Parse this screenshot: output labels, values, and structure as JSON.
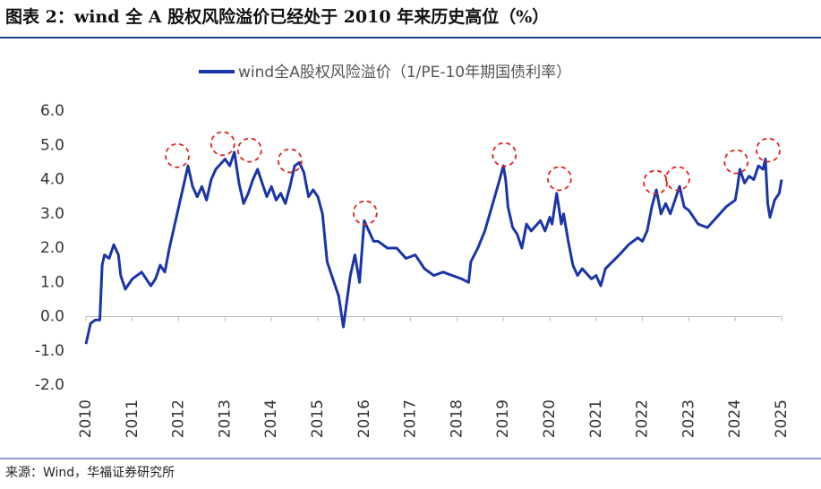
{
  "chart_data": {
    "type": "line",
    "title": "图表 2：wind 全 A 股权风险溢价已经处于 2010 年来历史高位（%）",
    "source": "来源：Wind，华福证券研究所",
    "xlim": [
      2010,
      2025
    ],
    "xticks": [
      2010,
      2011,
      2012,
      2013,
      2014,
      2015,
      2016,
      2017,
      2018,
      2019,
      2020,
      2021,
      2022,
      2023,
      2024,
      2025
    ],
    "ylim": [
      -2,
      6
    ],
    "yticks": [
      {
        "value": -2,
        "label": "-2.0"
      },
      {
        "value": -1,
        "label": "-1.0"
      },
      {
        "value": 0,
        "label": "0.0"
      },
      {
        "value": 1,
        "label": "1.0"
      },
      {
        "value": 2,
        "label": "2.0"
      },
      {
        "value": 3,
        "label": "3.0"
      },
      {
        "value": 4,
        "label": "4.0"
      },
      {
        "value": 5,
        "label": "5.0"
      },
      {
        "value": 6,
        "label": "6.0"
      }
    ],
    "grid": false,
    "legend": "top",
    "x": [
      2010.0,
      2010.05,
      2010.1,
      2010.2,
      2010.3,
      2010.35,
      2010.4,
      2010.5,
      2010.6,
      2010.7,
      2010.75,
      2010.85,
      2011.0,
      2011.2,
      2011.4,
      2011.5,
      2011.6,
      2011.7,
      2011.8,
      2011.9,
      2012.0,
      2012.1,
      2012.2,
      2012.3,
      2012.4,
      2012.5,
      2012.6,
      2012.7,
      2012.8,
      2013.0,
      2013.1,
      2013.2,
      2013.3,
      2013.4,
      2013.5,
      2013.6,
      2013.7,
      2013.8,
      2013.9,
      2014.0,
      2014.1,
      2014.2,
      2014.3,
      2014.4,
      2014.5,
      2014.6,
      2014.7,
      2014.8,
      2014.9,
      2015.0,
      2015.1,
      2015.15,
      2015.2,
      2015.3,
      2015.35,
      2015.45,
      2015.55,
      2015.6,
      2015.7,
      2015.8,
      2015.9,
      2016.0,
      2016.1,
      2016.2,
      2016.3,
      2016.5,
      2016.7,
      2016.9,
      2017.1,
      2017.3,
      2017.5,
      2017.7,
      2017.9,
      2018.1,
      2018.25,
      2018.3,
      2018.45,
      2018.6,
      2018.75,
      2018.9,
      2019.0,
      2019.05,
      2019.1,
      2019.2,
      2019.3,
      2019.4,
      2019.5,
      2019.6,
      2019.8,
      2019.9,
      2020.0,
      2020.05,
      2020.15,
      2020.25,
      2020.3,
      2020.4,
      2020.5,
      2020.6,
      2020.7,
      2020.9,
      2021.0,
      2021.1,
      2021.2,
      2021.5,
      2021.7,
      2021.9,
      2022.0,
      2022.1,
      2022.2,
      2022.3,
      2022.4,
      2022.5,
      2022.6,
      2022.8,
      2022.9,
      2023.0,
      2023.2,
      2023.4,
      2023.6,
      2023.8,
      2024.0,
      2024.05,
      2024.1,
      2024.2,
      2024.3,
      2024.4,
      2024.5,
      2024.6,
      2024.65,
      2024.7,
      2024.75,
      2024.85,
      2024.95,
      2025.0
    ],
    "series": [
      {
        "name": "wind全A股权风险溢价（1/PE-10年期国债利率）",
        "color": "#1a35a8",
        "values": [
          -0.8,
          -0.5,
          -0.2,
          -0.1,
          -0.1,
          1.5,
          1.8,
          1.7,
          2.1,
          1.8,
          1.2,
          0.8,
          1.1,
          1.3,
          0.9,
          1.1,
          1.5,
          1.3,
          2.0,
          2.6,
          3.2,
          3.8,
          4.4,
          3.8,
          3.5,
          3.8,
          3.4,
          4.0,
          4.3,
          4.6,
          4.4,
          4.8,
          3.9,
          3.3,
          3.6,
          4.0,
          4.3,
          3.9,
          3.5,
          3.8,
          3.4,
          3.6,
          3.3,
          3.8,
          4.4,
          4.5,
          4.2,
          3.5,
          3.7,
          3.5,
          3.0,
          2.3,
          1.6,
          1.2,
          1.0,
          0.6,
          -0.3,
          0.2,
          1.2,
          1.8,
          1.0,
          2.8,
          2.5,
          2.2,
          2.2,
          2.0,
          2.0,
          1.7,
          1.8,
          1.4,
          1.2,
          1.3,
          1.2,
          1.1,
          1.0,
          1.6,
          2.0,
          2.5,
          3.2,
          3.9,
          4.4,
          4.0,
          3.2,
          2.6,
          2.4,
          2.0,
          2.7,
          2.5,
          2.8,
          2.5,
          2.9,
          2.7,
          3.6,
          2.7,
          3.0,
          2.2,
          1.5,
          1.2,
          1.4,
          1.1,
          1.2,
          0.9,
          1.4,
          1.8,
          2.1,
          2.3,
          2.2,
          2.5,
          3.2,
          3.7,
          3.0,
          3.3,
          3.0,
          3.8,
          3.2,
          3.1,
          2.7,
          2.6,
          2.9,
          3.2,
          3.4,
          3.8,
          4.3,
          3.9,
          4.1,
          4.0,
          4.4,
          4.3,
          4.6,
          3.3,
          2.9,
          3.4,
          3.6,
          4.0
        ]
      }
    ],
    "highlights": {
      "color": "#e0201b",
      "x": [
        2011.97,
        2012.95,
        2013.53,
        2014.4,
        2016.02,
        2019.02,
        2020.21,
        2022.28,
        2022.76,
        2024.02,
        2024.71
      ],
      "y": [
        4.7,
        5.05,
        4.86,
        4.55,
        3.03,
        4.73,
        4.03,
        3.92,
        4.03,
        4.52,
        4.86
      ]
    }
  }
}
